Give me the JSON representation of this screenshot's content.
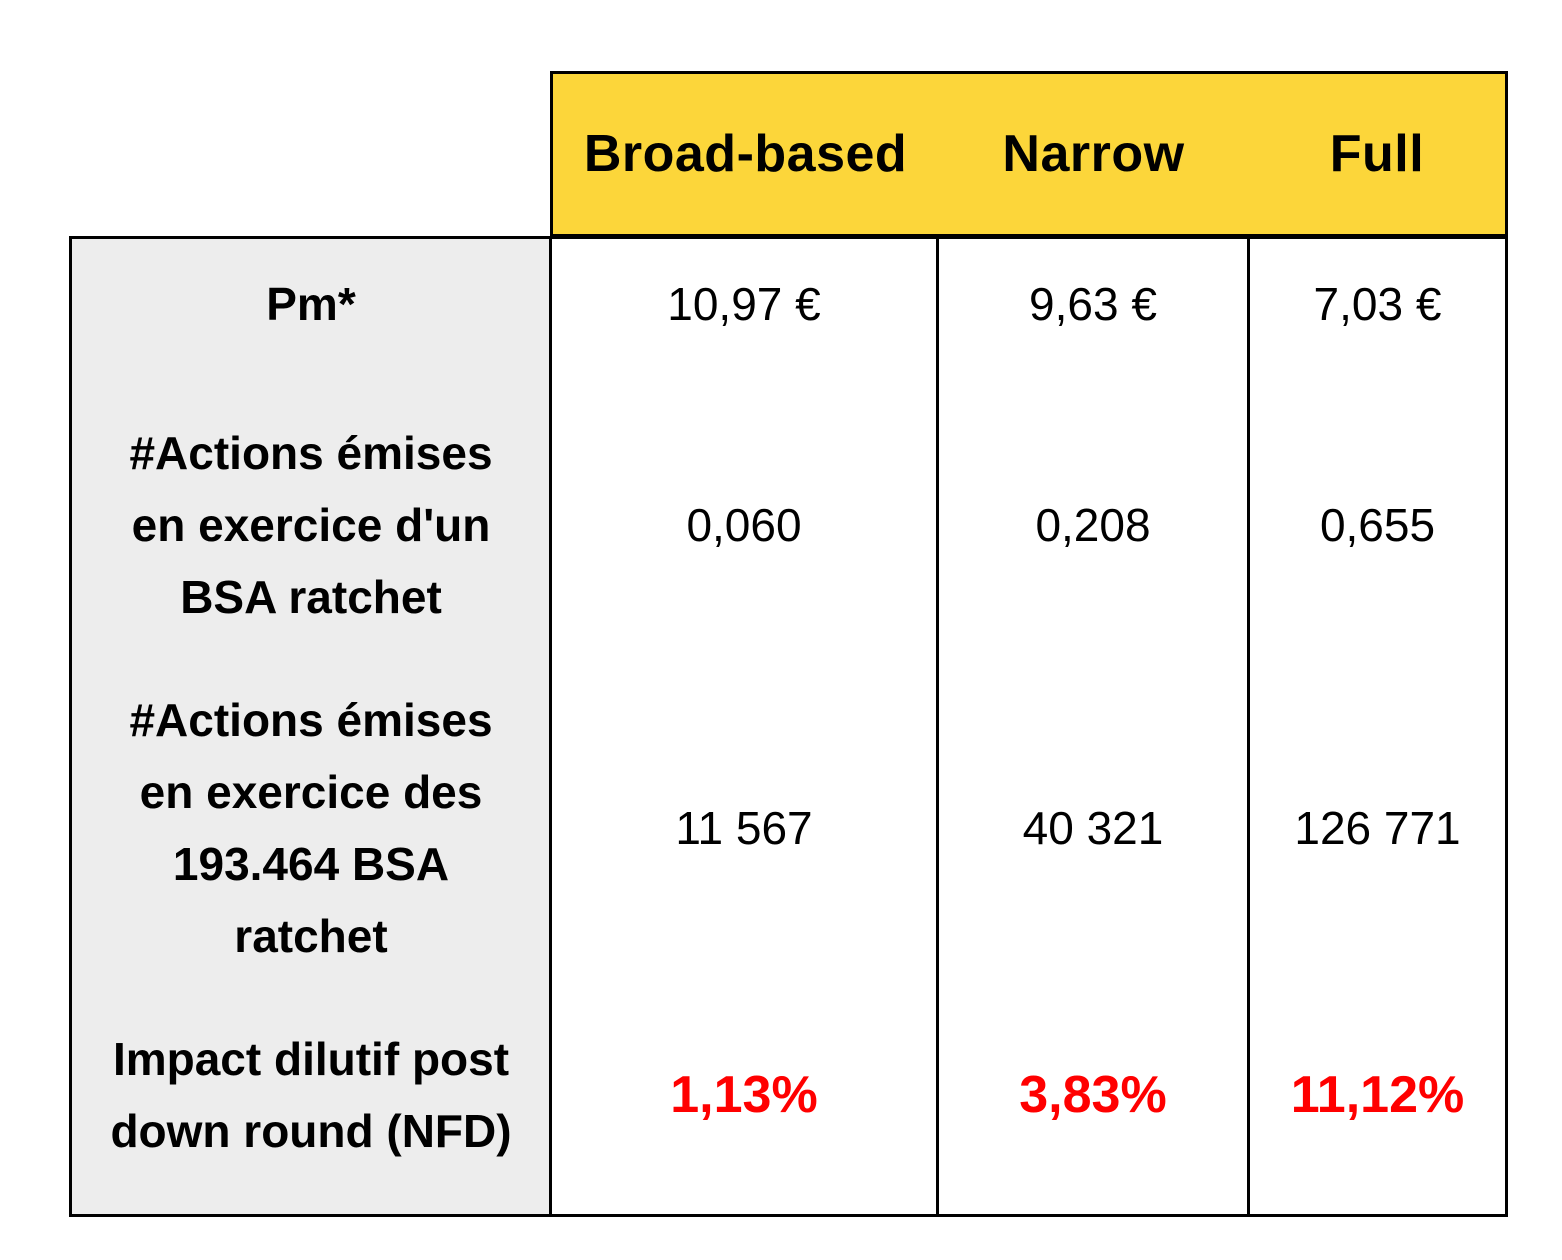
{
  "columns": [
    {
      "label": "Broad-based"
    },
    {
      "label": "Narrow"
    },
    {
      "label": "Full"
    }
  ],
  "rows": [
    {
      "label": "Pm*",
      "values": [
        "10,97 €",
        "9,63 €",
        "7,03 €"
      ]
    },
    {
      "label": "#Actions émises\nen exercice d'un\nBSA ratchet",
      "values": [
        "0,060",
        "0,208",
        "0,655"
      ]
    },
    {
      "label": "#Actions émises\nen exercice des\n193.464  BSA\nratchet",
      "values": [
        "11 567",
        "40 321",
        "126 771"
      ]
    },
    {
      "label": "Impact dilutif post\ndown round (NFD)",
      "values": [
        "1,13%",
        "3,83%",
        "11,12%"
      ]
    }
  ],
  "colors": {
    "header_bg": "#fcd63a",
    "label_bg": "#ededed",
    "highlight_text": "#ff0000"
  }
}
